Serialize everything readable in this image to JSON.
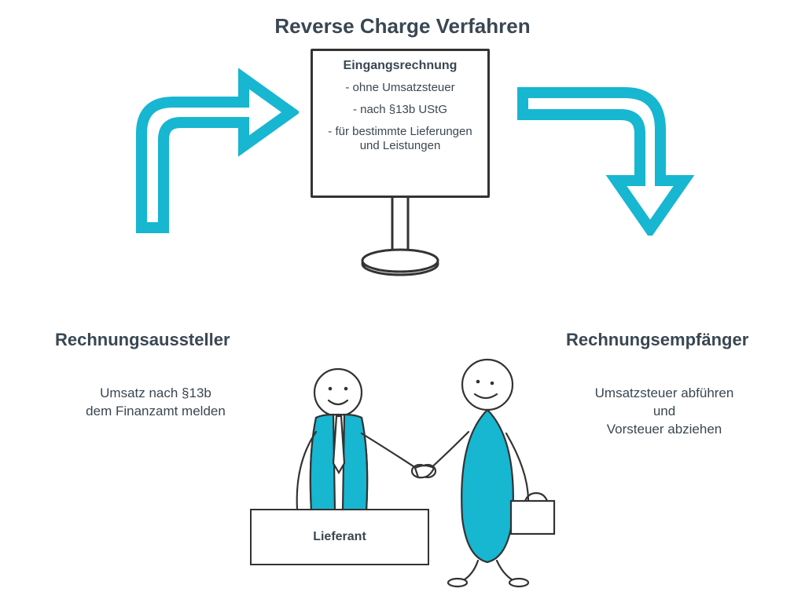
{
  "colors": {
    "accent": "#17b6d1",
    "stroke": "#333333",
    "text": "#3a4752",
    "background": "#ffffff"
  },
  "title": "Reverse Charge Verfahren",
  "sign": {
    "header": "Eingangsrechnung",
    "lines": [
      "- ohne Umsatzsteuer",
      "- nach §13b UStG",
      "- für bestimmte Lieferungen und Leistungen"
    ]
  },
  "left": {
    "header": "Rechnungsaussteller",
    "text": "Umsatz nach  §13b\ndem Finanzamt melden"
  },
  "right": {
    "header": "Rechnungsempfänger",
    "text": "Umsatzsteuer abführen\nund\nVorsteuer abziehen"
  },
  "bottom_label": "Lieferant",
  "style": {
    "title_fontsize": 26,
    "section_header_fontsize": 22,
    "body_fontsize": 17,
    "arrow_stroke_width": 14,
    "figure_stroke_width": 2.2
  }
}
